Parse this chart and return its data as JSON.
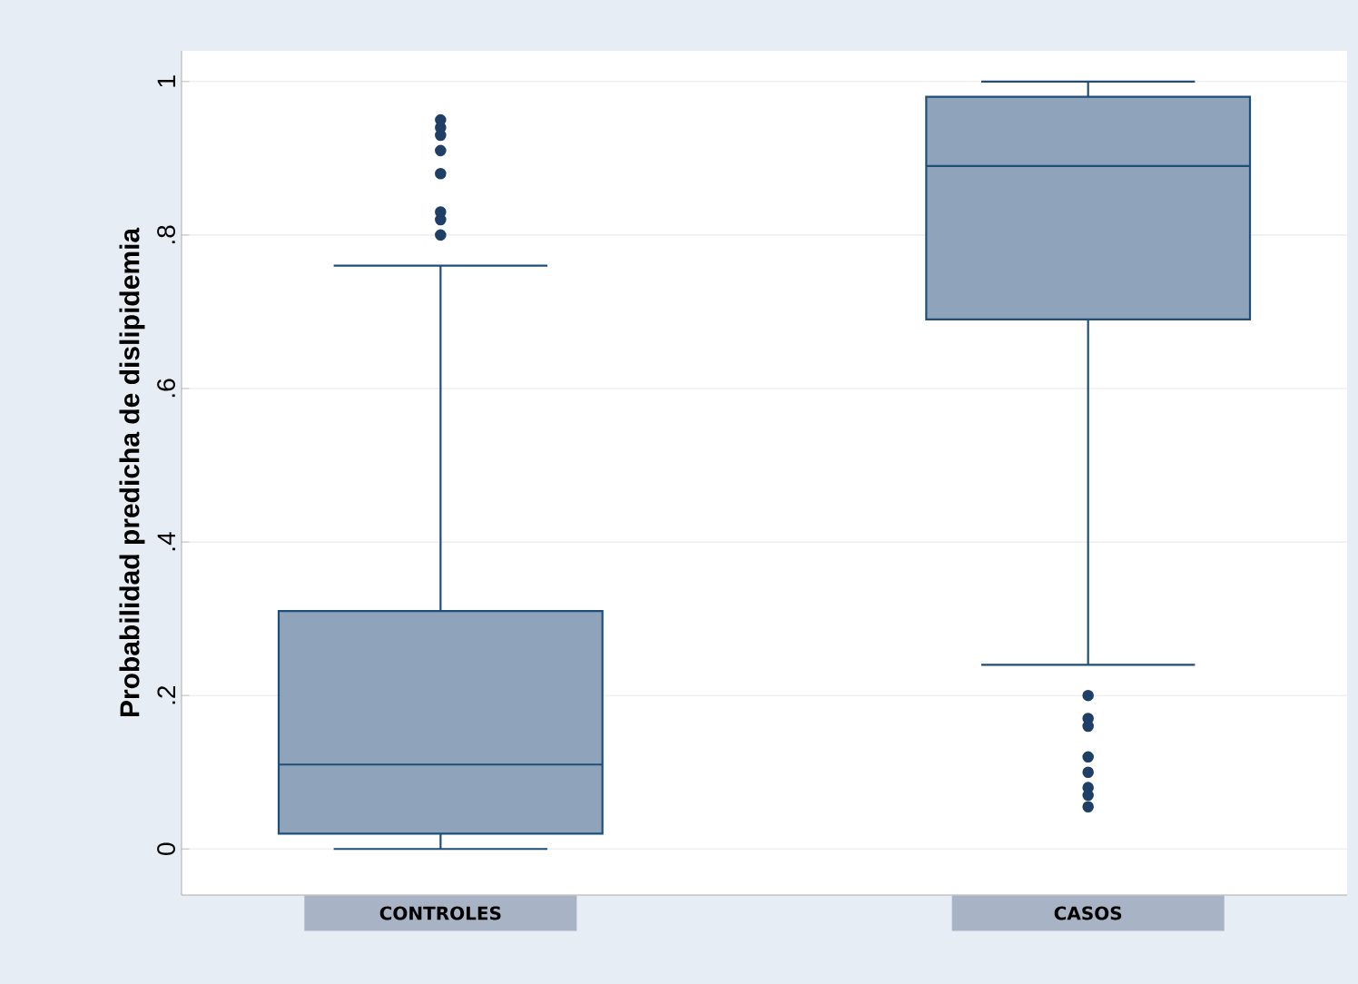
{
  "chart_data": {
    "type": "box",
    "ylabel": "Probabilidad predicha de dislipidemia",
    "categories": [
      "CONTROLES",
      "CASOS"
    ],
    "series": [
      {
        "color": "#8fa3bb",
        "boxes": [
          {
            "low": 0,
            "q1": 0.02,
            "median": 0.11,
            "q3": 0.31,
            "high": 0.76,
            "outliers": [
              0.95,
              0.94,
              0.93,
              0.91,
              0.88,
              0.83,
              0.82,
              0.8
            ]
          },
          {
            "low": 0.24,
            "q1": 0.69,
            "median": 0.89,
            "q3": 0.98,
            "high": 1.0,
            "outliers": [
              0.2,
              0.17,
              0.16,
              0.12,
              0.1,
              0.08,
              0.07,
              0.055
            ]
          }
        ]
      }
    ],
    "ylim": [
      -0.06,
      1.04
    ],
    "yticks": [
      {
        "value": 0,
        "label": "0"
      },
      {
        "value": 0.2,
        "label": ".2"
      },
      {
        "value": 0.4,
        "label": ".4"
      },
      {
        "value": 0.6,
        "label": ".6"
      },
      {
        "value": 0.8,
        "label": ".8"
      },
      {
        "value": 1,
        "label": "1"
      }
    ],
    "grid": "y",
    "marker": "circle"
  }
}
